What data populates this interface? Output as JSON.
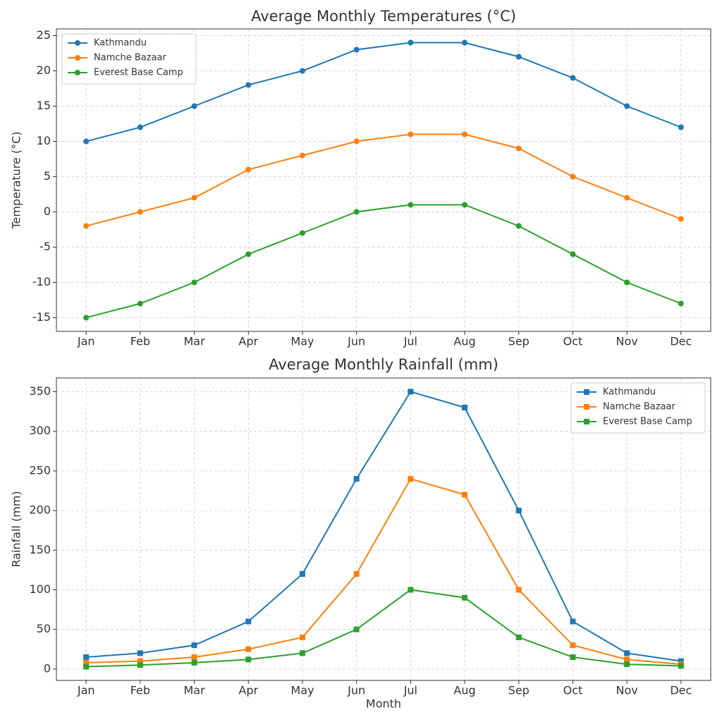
{
  "chart_data": [
    {
      "type": "line",
      "title": "Average Monthly Temperatures (°C)",
      "y_label": "Temperature (°C)",
      "categories": [
        "Jan",
        "Feb",
        "Mar",
        "Apr",
        "May",
        "Jun",
        "Jul",
        "Aug",
        "Sep",
        "Oct",
        "Nov",
        "Dec"
      ],
      "series": [
        {
          "name": "Kathmandu",
          "color": "#1f77b4",
          "values": [
            10,
            12,
            15,
            18,
            20,
            23,
            24,
            24,
            22,
            19,
            15,
            12
          ]
        },
        {
          "name": "Namche Bazaar",
          "color": "#ff7f0e",
          "values": [
            -2,
            0,
            2,
            6,
            8,
            10,
            11,
            11,
            9,
            5,
            2,
            -1
          ]
        },
        {
          "name": "Everest Base Camp",
          "color": "#2ca02c",
          "values": [
            -15,
            -13,
            -10,
            -6,
            -3,
            0,
            1,
            1,
            -2,
            -6,
            -10,
            -13
          ]
        }
      ],
      "marker": "circle",
      "ylim": [
        -16.95,
        25.95
      ],
      "yticks": [
        -15,
        -10,
        -5,
        0,
        5,
        10,
        15,
        20,
        25
      ],
      "grid": true,
      "legend": "upper-left"
    },
    {
      "type": "line",
      "title": "Average Monthly Rainfall (mm)",
      "y_label": "Rainfall (mm)",
      "x_label": "Month",
      "categories": [
        "Jan",
        "Feb",
        "Mar",
        "Apr",
        "May",
        "Jun",
        "Jul",
        "Aug",
        "Sep",
        "Oct",
        "Nov",
        "Dec"
      ],
      "series": [
        {
          "name": "Kathmandu",
          "color": "#1f77b4",
          "values": [
            15,
            20,
            30,
            60,
            120,
            240,
            350,
            330,
            200,
            60,
            20,
            10
          ]
        },
        {
          "name": "Namche Bazaar",
          "color": "#ff7f0e",
          "values": [
            8,
            10,
            15,
            25,
            40,
            120,
            240,
            220,
            100,
            30,
            12,
            6
          ]
        },
        {
          "name": "Everest Base Camp",
          "color": "#2ca02c",
          "values": [
            3,
            5,
            8,
            12,
            20,
            50,
            100,
            90,
            40,
            15,
            6,
            4
          ]
        }
      ],
      "marker": "square",
      "ylim": [
        -14.35,
        367.35
      ],
      "yticks": [
        0,
        50,
        100,
        150,
        200,
        250,
        300,
        350
      ],
      "grid": true,
      "legend": "upper-right"
    }
  ]
}
